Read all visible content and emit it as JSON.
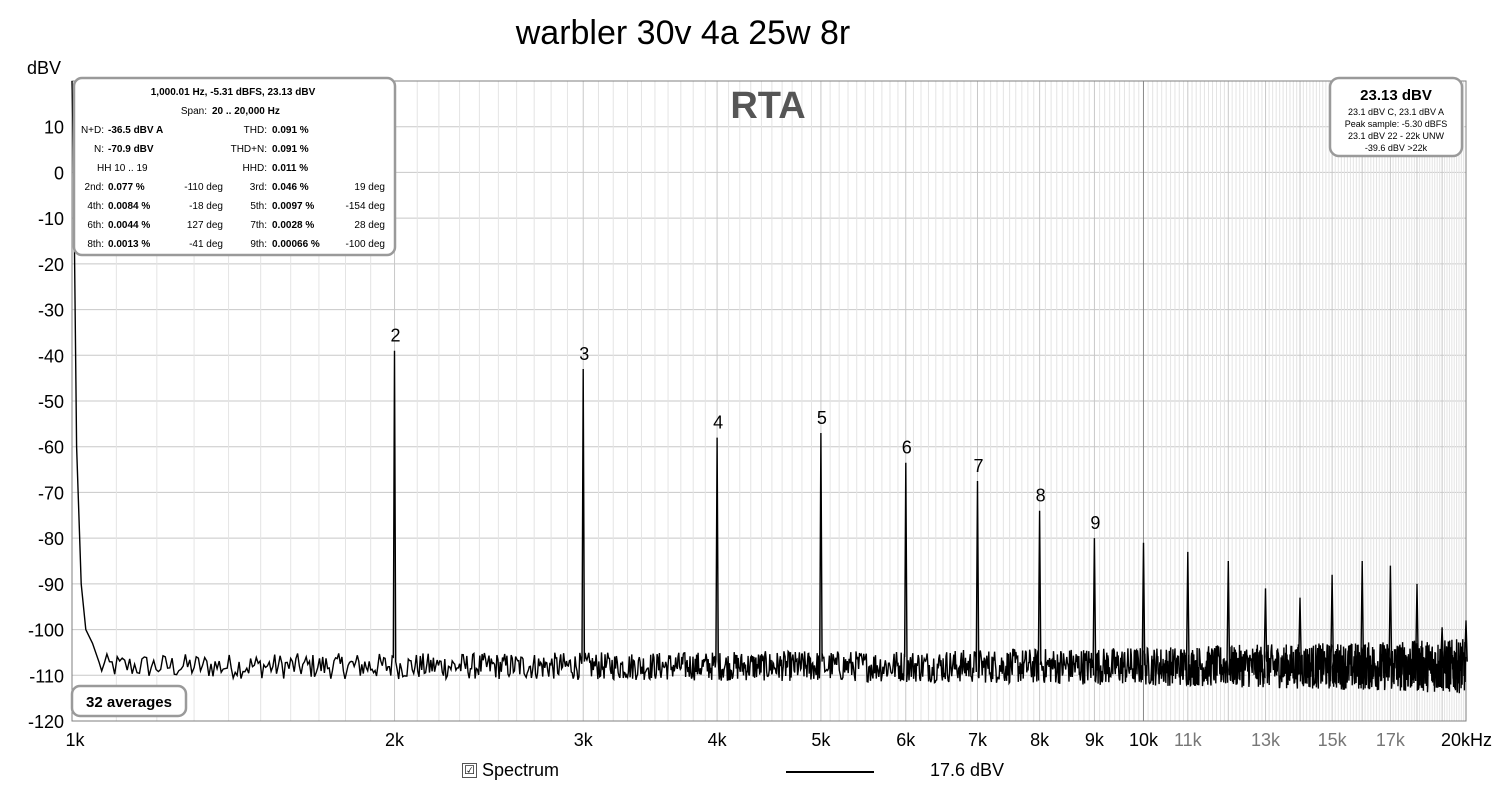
{
  "chart_data": {
    "type": "line",
    "title": "warbler 30v 4a 25w 8r",
    "ylabel": "dBV",
    "xunit": "Hz",
    "ylim": [
      -120,
      20
    ],
    "xlim": [
      1000,
      20000
    ],
    "xscale": "log",
    "grid": true,
    "y_ticks": [
      "10",
      "0",
      "-10",
      "-20",
      "-30",
      "-40",
      "-50",
      "-60",
      "-70",
      "-80",
      "-90",
      "-100",
      "-110",
      "-120"
    ],
    "y_tick_values": [
      10,
      0,
      -10,
      -20,
      -30,
      -40,
      -50,
      -60,
      -70,
      -80,
      -90,
      -100,
      -110,
      -120
    ],
    "x_ticks": [
      {
        "label": "1k",
        "value": 1000,
        "major": true
      },
      {
        "label": "2k",
        "value": 2000,
        "major": true
      },
      {
        "label": "3k",
        "value": 3000,
        "major": true
      },
      {
        "label": "4k",
        "value": 4000,
        "major": true
      },
      {
        "label": "5k",
        "value": 5000,
        "major": true
      },
      {
        "label": "6k",
        "value": 6000,
        "major": true
      },
      {
        "label": "7k",
        "value": 7000,
        "major": true
      },
      {
        "label": "8k",
        "value": 8000,
        "major": true
      },
      {
        "label": "9k",
        "value": 9000,
        "major": true
      },
      {
        "label": "10k",
        "value": 10000,
        "major": true
      },
      {
        "label": "11k",
        "value": 11000,
        "major": false
      },
      {
        "label": "13k",
        "value": 13000,
        "major": false
      },
      {
        "label": "15k",
        "value": 15000,
        "major": false
      },
      {
        "label": "17k",
        "value": 17000,
        "major": false
      },
      {
        "label": "20kHz",
        "value": 20000,
        "major": true
      }
    ],
    "noise_floor_dbv": -108,
    "fundamental": {
      "freq": 1000,
      "dbv": 23.13
    },
    "harmonic_peaks": [
      {
        "label": "2",
        "freq": 2000,
        "dbv": -39
      },
      {
        "label": "3",
        "freq": 3000,
        "dbv": -43
      },
      {
        "label": "4",
        "freq": 4000,
        "dbv": -58
      },
      {
        "label": "5",
        "freq": 5000,
        "dbv": -57
      },
      {
        "label": "6",
        "freq": 6000,
        "dbv": -63.5
      },
      {
        "label": "7",
        "freq": 7000,
        "dbv": -67.5
      },
      {
        "label": "8",
        "freq": 8000,
        "dbv": -74
      },
      {
        "label": "9",
        "freq": 9000,
        "dbv": -80
      },
      {
        "label": "",
        "freq": 10000,
        "dbv": -81
      },
      {
        "label": "",
        "freq": 11000,
        "dbv": -83
      },
      {
        "label": "",
        "freq": 12000,
        "dbv": -85
      },
      {
        "label": "",
        "freq": 13000,
        "dbv": -91
      },
      {
        "label": "",
        "freq": 14000,
        "dbv": -93
      },
      {
        "label": "",
        "freq": 15000,
        "dbv": -88
      },
      {
        "label": "",
        "freq": 16000,
        "dbv": -85
      },
      {
        "label": "",
        "freq": 17000,
        "dbv": -86
      },
      {
        "label": "",
        "freq": 18000,
        "dbv": -90
      },
      {
        "label": "",
        "freq": 19000,
        "dbv": -99.5
      },
      {
        "label": "",
        "freq": 20000,
        "dbv": -98
      }
    ],
    "series": [
      {
        "name": "Spectrum",
        "color": "#000000"
      }
    ]
  },
  "rta_label": "RTA",
  "distortion_panel": {
    "header": "1,000.01 Hz, -5.31 dBFS, 23.13 dBV",
    "span_label": "Span:",
    "span_value": "20 .. 20,000 Hz",
    "rows": [
      {
        "l1": "N+D:",
        "v1": "-36.5 dBV A",
        "l2": "THD:",
        "v2": "0.091 %"
      },
      {
        "l1": "N:",
        "v1": "-70.9 dBV",
        "l2": "THD+N:",
        "v2": "0.091 %"
      },
      {
        "l1": "HH 10 .. 19",
        "v1": "",
        "l2": "HHD:",
        "v2": "0.011 %"
      }
    ],
    "harmonics": [
      {
        "l1": "2nd:",
        "v1": "0.077 %",
        "d1": "-110 deg",
        "l2": "3rd:",
        "v2": "0.046 %",
        "d2": "19 deg"
      },
      {
        "l1": "4th:",
        "v1": "0.0084 %",
        "d1": "-18 deg",
        "l2": "5th:",
        "v2": "0.0097 %",
        "d2": "-154 deg"
      },
      {
        "l1": "6th:",
        "v1": "0.0044 %",
        "d1": "127 deg",
        "l2": "7th:",
        "v2": "0.0028 %",
        "d2": "28 deg"
      },
      {
        "l1": "8th:",
        "v1": "0.0013 %",
        "d1": "-41 deg",
        "l2": "9th:",
        "v2": "0.00066 %",
        "d2": "-100 deg"
      }
    ]
  },
  "level_panel": {
    "main": "23.13 dBV",
    "lines": [
      "23.1 dBV C, 23.1 dBV A",
      "Peak sample: -5.30 dBFS",
      "23.1 dBV 22 - 22k UNW",
      "-39.6 dBV >22k"
    ]
  },
  "averages_label": "32 averages",
  "legend": {
    "check": "☑",
    "name": "Spectrum",
    "value": "17.6 dBV"
  }
}
